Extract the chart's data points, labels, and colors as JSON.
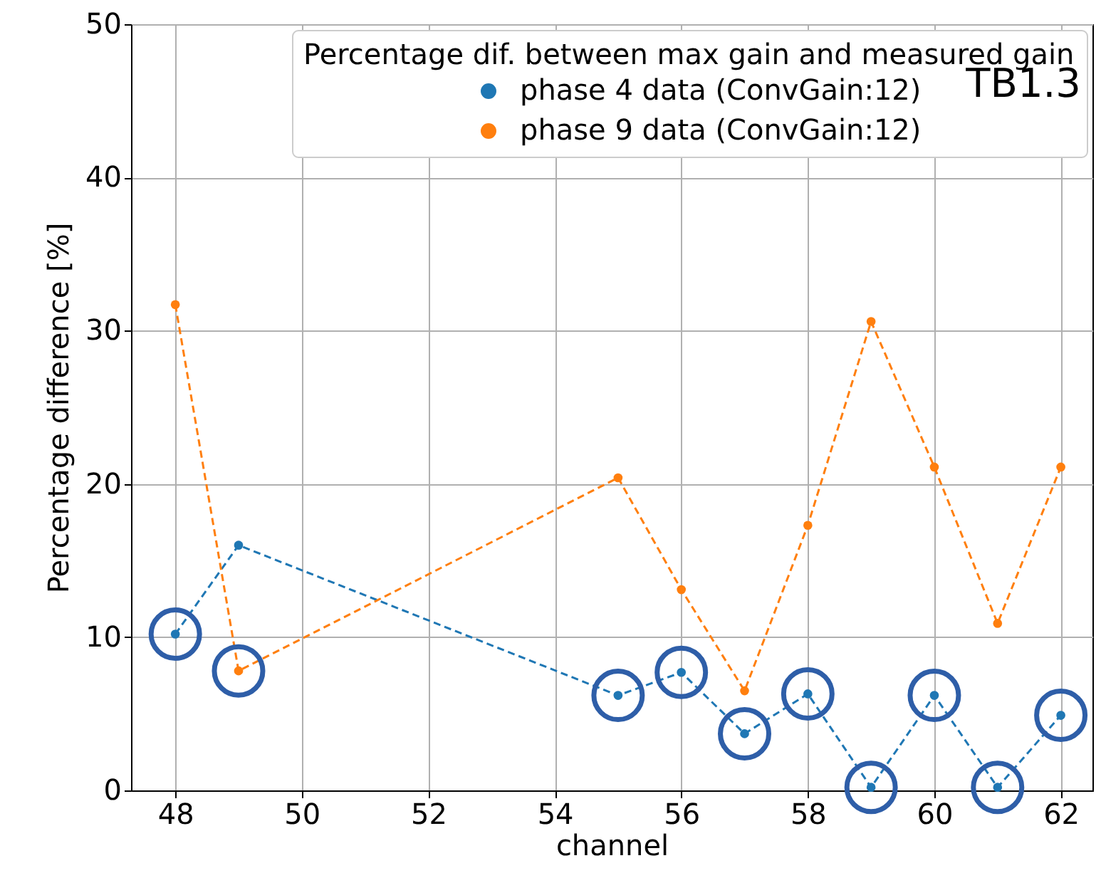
{
  "chart_data": {
    "type": "line",
    "legend_title": "Percentage dif. between max gain and measured gain",
    "xlabel": "channel",
    "ylabel": "Percentage difference [%]",
    "annotations": [
      "TB1.3"
    ],
    "x": [
      48,
      49,
      55,
      56,
      57,
      58,
      59,
      60,
      61,
      62
    ],
    "series": [
      {
        "name": "phase 4 data (ConvGain:12)",
        "color": "#1f77b4",
        "values": [
          10.2,
          16.0,
          6.2,
          7.7,
          3.7,
          6.3,
          0.2,
          6.2,
          0.2,
          4.9
        ]
      },
      {
        "name": "phase 9 data (ConvGain:12)",
        "color": "#ff7f0e",
        "values": [
          31.7,
          7.8,
          20.4,
          13.1,
          6.5,
          17.3,
          30.6,
          21.1,
          10.9,
          21.1
        ]
      }
    ],
    "xlim": [
      47.3,
      62.5
    ],
    "xticks": [
      48,
      50,
      52,
      54,
      56,
      58,
      60,
      62
    ],
    "ylim": [
      0,
      50
    ],
    "yticks": [
      0,
      10,
      20,
      30,
      40,
      50
    ],
    "grid": true,
    "legend": "top right",
    "marker": "circle",
    "line_style": "dashed"
  }
}
